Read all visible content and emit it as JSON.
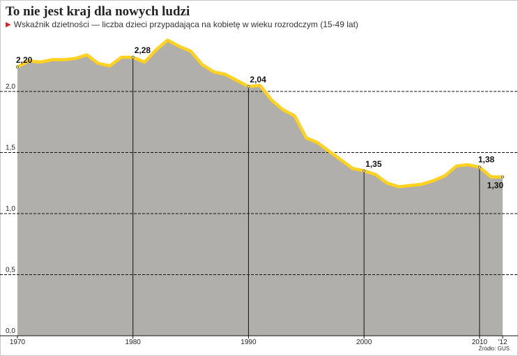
{
  "title": "To nie jest kraj dla nowych ludzi",
  "subtitle": "Wskaźnik dzietności — liczba dzieci przypadająca na kobietę w wieku rozrodczym (15-49 lat)",
  "source": "Źródło: GUS",
  "colors": {
    "area": "#b0afab",
    "line": "#ffd21f",
    "marker": "#d2232a"
  },
  "chart_data": {
    "type": "area",
    "title": "To nie jest kraj dla nowych ludzi",
    "subtitle": "Wskaźnik dzietności — liczba dzieci przypadająca na kobietę w wieku rozrodczym (15-49 lat)",
    "xlabel": "",
    "ylabel": "",
    "xlim": [
      1970,
      2012
    ],
    "ylim": [
      0,
      2.5
    ],
    "grid": true,
    "x": [
      1970,
      1971,
      1972,
      1973,
      1974,
      1975,
      1976,
      1977,
      1978,
      1979,
      1980,
      1981,
      1982,
      1983,
      1984,
      1985,
      1986,
      1987,
      1988,
      1989,
      1990,
      1991,
      1992,
      1993,
      1994,
      1995,
      1996,
      1997,
      1998,
      1999,
      2000,
      2001,
      2002,
      2003,
      2004,
      2005,
      2006,
      2007,
      2008,
      2009,
      2010,
      2011,
      2012
    ],
    "y": [
      2.2,
      2.25,
      2.24,
      2.26,
      2.26,
      2.27,
      2.3,
      2.23,
      2.21,
      2.28,
      2.28,
      2.24,
      2.34,
      2.42,
      2.37,
      2.33,
      2.22,
      2.16,
      2.14,
      2.09,
      2.04,
      2.05,
      1.93,
      1.85,
      1.8,
      1.62,
      1.58,
      1.51,
      1.44,
      1.37,
      1.35,
      1.32,
      1.25,
      1.22,
      1.23,
      1.24,
      1.27,
      1.31,
      1.39,
      1.4,
      1.38,
      1.3,
      1.3
    ],
    "yticks": [
      "0,0",
      "0,5",
      "1,0",
      "1,5",
      "2,0"
    ],
    "ytick_values": [
      0,
      0.5,
      1.0,
      1.5,
      2.0
    ],
    "xticks": [
      "1970",
      "1980",
      "1990",
      "2000",
      "2010",
      "'12"
    ],
    "xtick_values": [
      1970,
      1980,
      1990,
      2000,
      2010,
      2012
    ],
    "annotations": [
      {
        "x": 1970,
        "y": 2.2,
        "label": "2,20"
      },
      {
        "x": 1980,
        "y": 2.28,
        "label": "2,28"
      },
      {
        "x": 1990,
        "y": 2.04,
        "label": "2,04"
      },
      {
        "x": 2000,
        "y": 1.35,
        "label": "1,35"
      },
      {
        "x": 2010,
        "y": 1.38,
        "label": "1,38"
      },
      {
        "x": 2012,
        "y": 1.3,
        "label": "1,30"
      }
    ]
  }
}
